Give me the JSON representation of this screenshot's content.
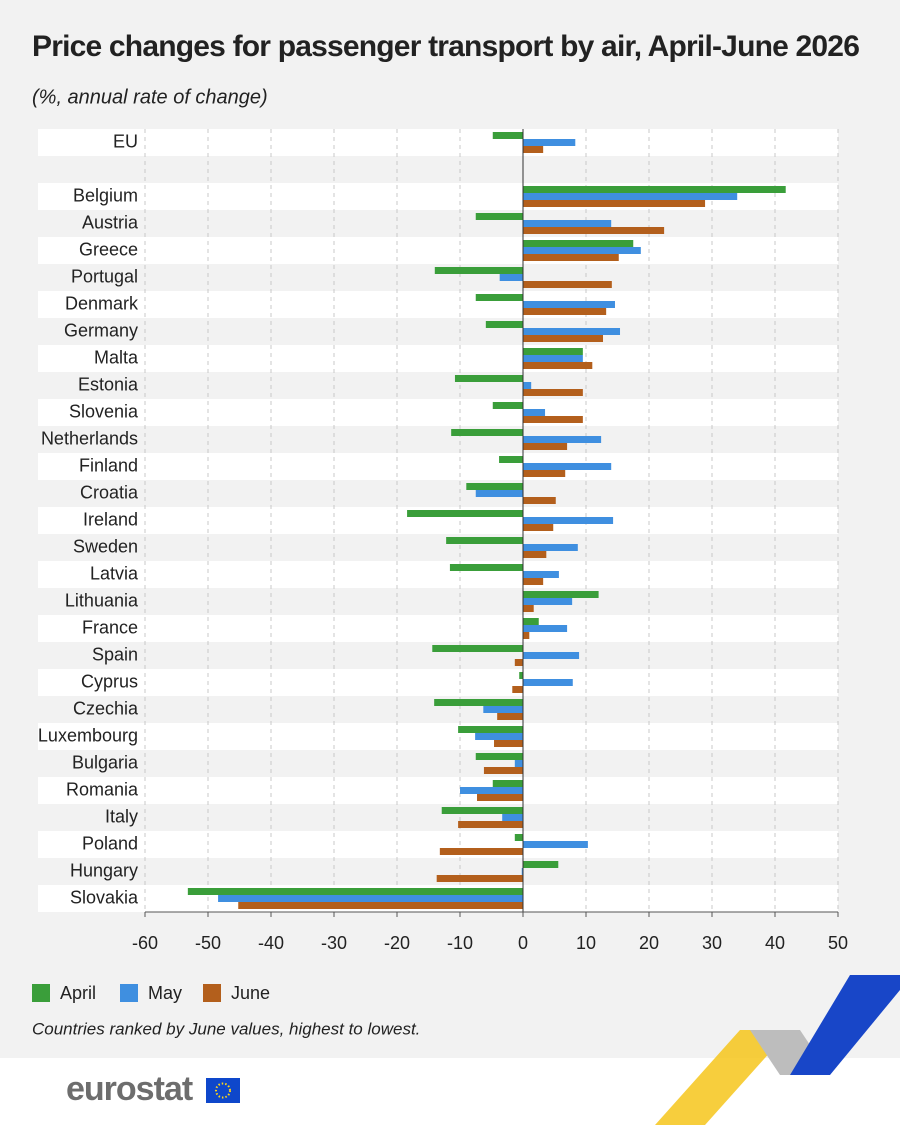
{
  "chart_data": {
    "type": "hbar",
    "title": "Price changes for passenger transport by air, April-June 2026",
    "subtitle": "(%, annual rate of change)",
    "note": "Countries ranked by June values, highest to lowest.",
    "categories": [
      "EU",
      null,
      "Belgium",
      "Austria",
      "Greece",
      "Portugal",
      "Denmark",
      "Germany",
      "Malta",
      "Estonia",
      "Slovenia",
      "Netherlands",
      "Finland",
      "Croatia",
      "Ireland",
      "Sweden",
      "Latvia",
      "Lithuania",
      "France",
      "Spain",
      "Cyprus",
      "Czechia",
      "Luxembourg",
      "Bulgaria",
      "Romania",
      "Italy",
      "Poland",
      "Hungary",
      "Slovakia"
    ],
    "series": [
      {
        "name": "April",
        "color": "#3a9e3a",
        "values": [
          -4.8,
          null,
          41.7,
          -7.5,
          17.5,
          -14,
          -7.5,
          -5.9,
          9.5,
          -10.8,
          -4.8,
          -11.4,
          -3.8,
          -9,
          -18.4,
          -12.2,
          -11.6,
          12,
          2.5,
          -14.4,
          -0.6,
          -14.1,
          -10.3,
          -7.5,
          -4.8,
          -12.9,
          -1.3,
          5.6,
          -53.2
        ]
      },
      {
        "name": "May",
        "color": "#3f8fe0",
        "values": [
          8.3,
          null,
          34,
          14,
          18.7,
          -3.7,
          14.6,
          15.4,
          9.5,
          1.3,
          3.5,
          12.4,
          14,
          -7.5,
          14.3,
          8.7,
          5.7,
          7.8,
          7,
          8.9,
          7.9,
          -6.3,
          -7.6,
          -1.3,
          -10,
          -3.3,
          10.3,
          -0.2,
          -48.4
        ]
      },
      {
        "name": "June",
        "color": "#b35f1c",
        "values": [
          3.2,
          null,
          28.9,
          22.4,
          15.2,
          14.1,
          13.2,
          12.7,
          11,
          9.5,
          9.5,
          7,
          6.7,
          5.2,
          4.8,
          3.7,
          3.2,
          1.7,
          1,
          -1.3,
          -1.7,
          -4.1,
          -4.6,
          -6.2,
          -7.3,
          -10.3,
          -13.2,
          -13.7,
          -45.2
        ]
      }
    ],
    "xlim": [
      -60,
      50
    ],
    "xticks": [
      -60,
      -50,
      -40,
      -30,
      -20,
      -10,
      0,
      10,
      20,
      30,
      40,
      50
    ],
    "grid": true
  },
  "branding": {
    "logo": "eurostat"
  }
}
